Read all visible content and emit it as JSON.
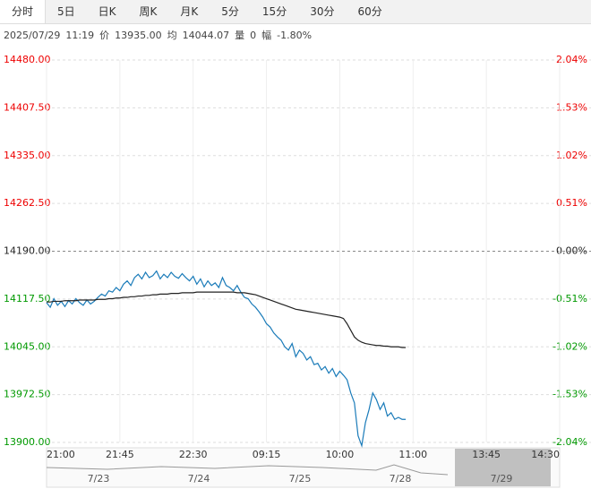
{
  "tabs": [
    "分时",
    "5日",
    "日K",
    "周K",
    "月K",
    "5分",
    "15分",
    "30分",
    "60分"
  ],
  "info": {
    "date": "2025/07/29",
    "time": "11:19",
    "price_label": "价",
    "price": "13935.00",
    "avg_label": "均",
    "avg": "14044.07",
    "vol_label": "量",
    "vol": "0",
    "amp_label": "幅",
    "amp": "-1.80%"
  },
  "chart_data": {
    "type": "line",
    "xlim": [
      0,
      140
    ],
    "xticks": [
      {
        "value": 0,
        "label": "21:00"
      },
      {
        "value": 20,
        "label": "21:45"
      },
      {
        "value": 40,
        "label": "22:30"
      },
      {
        "value": 60,
        "label": "09:15"
      },
      {
        "value": 80,
        "label": "10:00"
      },
      {
        "value": 100,
        "label": "11:00"
      },
      {
        "value": 120,
        "label": "13:45"
      },
      {
        "value": 140,
        "label": "14:30"
      }
    ],
    "ylim": [
      13900,
      14480
    ],
    "yticks": [
      {
        "value": 14480,
        "label": "14480.00"
      },
      {
        "value": 14407.5,
        "label": "14407.50"
      },
      {
        "value": 14335,
        "label": "14335.00"
      },
      {
        "value": 14262.5,
        "label": "14262.50"
      },
      {
        "value": 14190,
        "label": "14190.00"
      },
      {
        "value": 14117.5,
        "label": "14117.50"
      },
      {
        "value": 14045,
        "label": "14045.00"
      },
      {
        "value": 13972.5,
        "label": "13972.50"
      },
      {
        "value": 13900,
        "label": "13900.00"
      }
    ],
    "y2lim": [
      -2.04,
      2.04
    ],
    "y2ticks": [
      {
        "value": 2.04,
        "label": "2.04%"
      },
      {
        "value": 1.53,
        "label": "1.53%"
      },
      {
        "value": 1.02,
        "label": "1.02%"
      },
      {
        "value": 0.51,
        "label": "0.51%"
      },
      {
        "value": 0,
        "label": "0.00%"
      },
      {
        "value": -0.51,
        "label": "-0.51%"
      },
      {
        "value": -1.02,
        "label": "-1.02%"
      },
      {
        "value": -1.53,
        "label": "-1.53%"
      },
      {
        "value": -2.04,
        "label": "-2.04%"
      }
    ],
    "grid": true,
    "series": [
      {
        "color": "#1a7bb9",
        "values": [
          14112,
          14105,
          14118,
          14108,
          14114,
          14106,
          14115,
          14110,
          14118,
          14112,
          14108,
          14116,
          14110,
          14114,
          14120,
          14125,
          14122,
          14130,
          14128,
          14135,
          14130,
          14140,
          14145,
          14138,
          14150,
          14155,
          14148,
          14158,
          14150,
          14153,
          14160,
          14148,
          14155,
          14150,
          14158,
          14152,
          14149,
          14156,
          14150,
          14145,
          14152,
          14140,
          14148,
          14136,
          14145,
          14138,
          14142,
          14135,
          14150,
          14138,
          14135,
          14130,
          14138,
          14128,
          14120,
          14118,
          14110,
          14105,
          14098,
          14090,
          14080,
          14075,
          14066,
          14060,
          14055,
          14045,
          14040,
          14050,
          14030,
          14040,
          14035,
          14025,
          14030,
          14018,
          14020,
          14010,
          14015,
          14005,
          14012,
          14000,
          14008,
          14002,
          13995,
          13975,
          13960,
          13910,
          13895,
          13930,
          13950,
          13975,
          13965,
          13950,
          13960,
          13940,
          13945,
          13935,
          13938,
          13935,
          13935
        ]
      },
      {
        "color": "#222222",
        "values": [
          14113,
          14113,
          14114,
          14114,
          14114,
          14115,
          14115,
          14115,
          14115,
          14116,
          14116,
          14116,
          14116,
          14116,
          14117,
          14117,
          14117,
          14118,
          14118,
          14119,
          14119,
          14120,
          14120,
          14121,
          14121,
          14122,
          14122,
          14123,
          14123,
          14124,
          14124,
          14125,
          14125,
          14125,
          14126,
          14126,
          14126,
          14127,
          14127,
          14127,
          14127,
          14128,
          14128,
          14128,
          14128,
          14128,
          14128,
          14128,
          14128,
          14128,
          14128,
          14128,
          14127,
          14127,
          14127,
          14126,
          14125,
          14124,
          14122,
          14120,
          14118,
          14116,
          14114,
          14112,
          14110,
          14108,
          14106,
          14104,
          14102,
          14101,
          14100,
          14099,
          14098,
          14097,
          14096,
          14095,
          14094,
          14093,
          14092,
          14091,
          14090,
          14088,
          14080,
          14070,
          14060,
          14055,
          14052,
          14050,
          14049,
          14048,
          14047,
          14047,
          14046,
          14046,
          14045,
          14045,
          14045,
          14044,
          14044
        ]
      }
    ]
  },
  "navigator": {
    "labels": [
      "7/23",
      "7/24",
      "7/25",
      "7/28",
      "7/29"
    ]
  }
}
